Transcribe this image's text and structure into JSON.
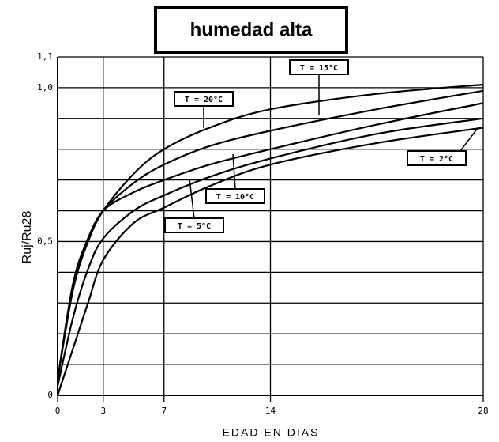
{
  "chart_data": {
    "type": "line",
    "title": "humedad alta",
    "x_label": "EDAD EN DIAS",
    "y_label": "Ruj/Ru28",
    "x": [
      0,
      1,
      2,
      3,
      5,
      7,
      10,
      14,
      21,
      28
    ],
    "series": [
      {
        "name": "T = 20°C",
        "color": "#000000",
        "values": [
          0.05,
          0.35,
          0.5,
          0.6,
          0.72,
          0.8,
          0.87,
          0.93,
          0.98,
          1.01
        ]
      },
      {
        "name": "T = 15°C",
        "color": "#000000",
        "values": [
          0.05,
          0.36,
          0.51,
          0.6,
          0.69,
          0.75,
          0.81,
          0.86,
          0.93,
          0.99
        ]
      },
      {
        "name": "T = 10°C",
        "color": "#000000",
        "values": [
          0.05,
          0.34,
          0.5,
          0.6,
          0.66,
          0.7,
          0.75,
          0.8,
          0.88,
          0.95
        ]
      },
      {
        "name": "T = 5°C",
        "color": "#000000",
        "values": [
          0.03,
          0.25,
          0.41,
          0.51,
          0.6,
          0.65,
          0.71,
          0.77,
          0.85,
          0.9
        ]
      },
      {
        "name": "T = 2°C",
        "color": "#000000",
        "values": [
          0,
          0.15,
          0.3,
          0.44,
          0.56,
          0.61,
          0.68,
          0.75,
          0.82,
          0.87
        ]
      }
    ],
    "xlim": [
      0,
      28
    ],
    "xticks": [
      0,
      3,
      7,
      14,
      28
    ],
    "ylim": [
      0,
      1.1
    ],
    "yticks": [
      0,
      {
        "value": 0.5,
        "label": "0,5"
      },
      {
        "value": 1.0,
        "label": "1,0"
      },
      {
        "value": 1.1,
        "label": "1,1"
      }
    ],
    "minor_yticks": [
      0.1,
      0.2,
      0.3,
      0.4,
      0.6,
      0.7,
      0.8,
      0.9
    ],
    "grid": true
  }
}
